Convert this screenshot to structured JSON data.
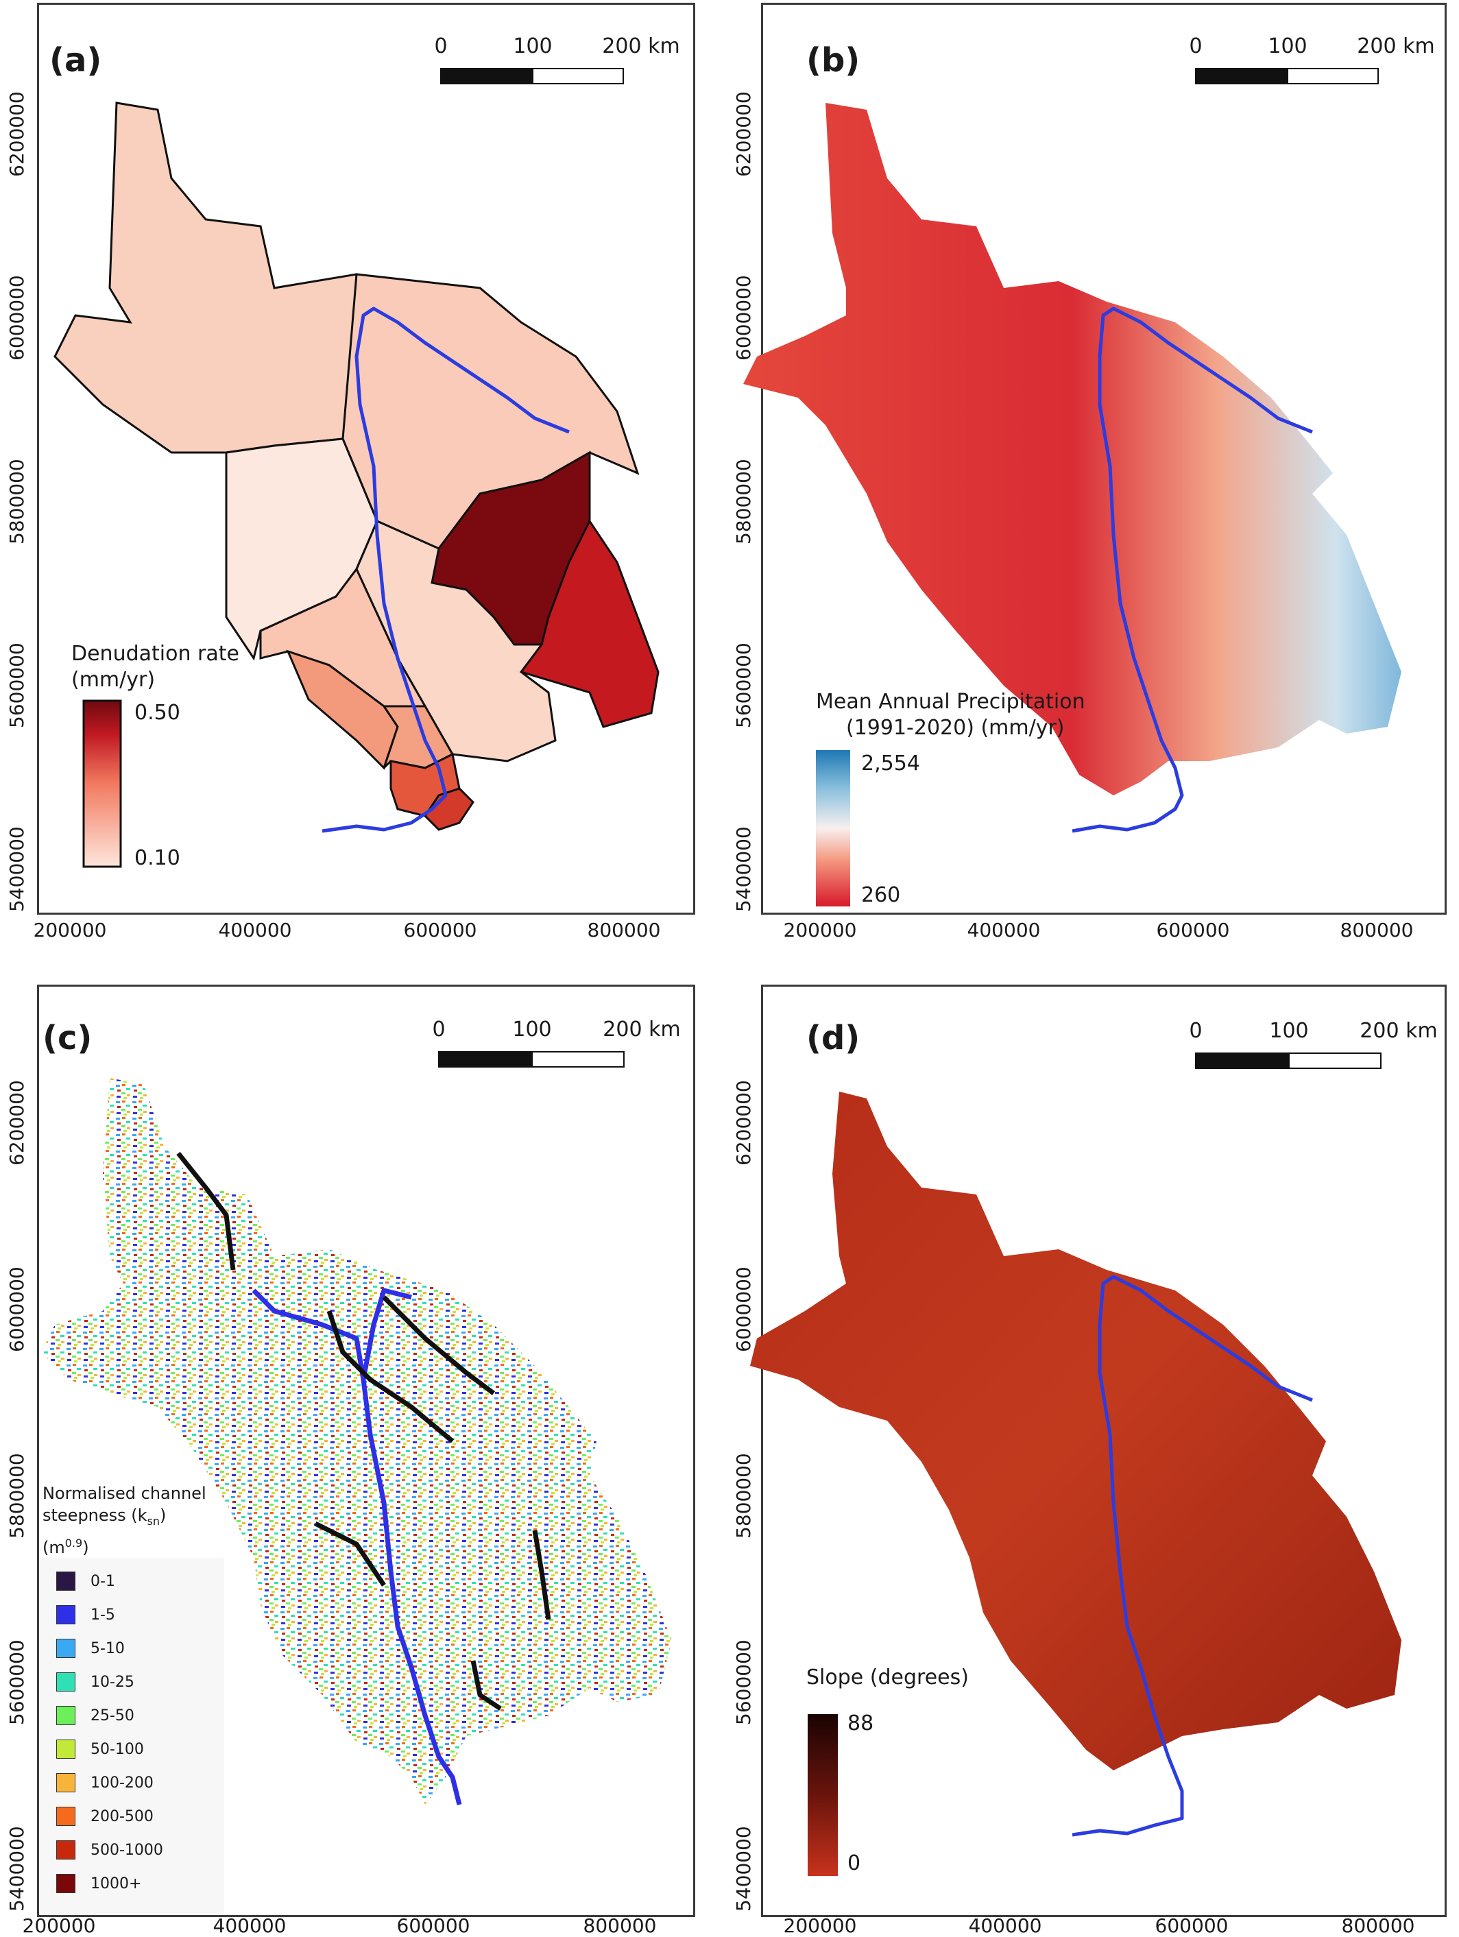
{
  "panels": {
    "a": {
      "label": "(a)",
      "legend_title_line1": "Denudation rate",
      "legend_title_line2": "(mm/yr)",
      "legend_max": "0.50",
      "legend_min": "0.10"
    },
    "b": {
      "label": "(b)",
      "legend_title_line1": "Mean Annual Precipitation",
      "legend_title_line2": "(1991-2020) (mm/yr)",
      "legend_max": "2,554",
      "legend_min": "260"
    },
    "c": {
      "label": "(c)",
      "legend_title_line1": "Normalised channel",
      "legend_title_line2": "steepness (k",
      "legend_title_sub": "sn",
      "legend_title_after": ")",
      "legend_unit_base": "(m",
      "legend_unit_sup": "0.9",
      "legend_unit_after": ")",
      "ksn_classes": [
        {
          "label": "0-1",
          "color": "#2a1746"
        },
        {
          "label": "1-5",
          "color": "#2e2fe6"
        },
        {
          "label": "5-10",
          "color": "#3aa8f2"
        },
        {
          "label": "10-25",
          "color": "#2ee0b4"
        },
        {
          "label": "25-50",
          "color": "#6cf05a"
        },
        {
          "label": "50-100",
          "color": "#c2e838"
        },
        {
          "label": "100-200",
          "color": "#f8b43a"
        },
        {
          "label": "200-500",
          "color": "#f56a1c"
        },
        {
          "label": "500-1000",
          "color": "#c8280c"
        },
        {
          "label": "1000+",
          "color": "#7a0808"
        }
      ]
    },
    "d": {
      "label": "(d)",
      "legend_title": "Slope (degrees)",
      "legend_max": "88",
      "legend_min": "0"
    }
  },
  "scale_bar": {
    "labels": [
      "0",
      "100",
      "200 km"
    ]
  },
  "axes": {
    "x_ticks": [
      "200000",
      "400000",
      "600000",
      "800000"
    ],
    "y_ticks": [
      "5400000",
      "5600000",
      "5800000",
      "6000000",
      "6200000"
    ]
  },
  "colors": {
    "river": "#2b3ce0",
    "denudation_low": "#fde6dc",
    "denudation_high": "#6e0a0f",
    "precip_low": "#d7192a",
    "precip_high": "#1f78b4",
    "slope_low": "#c8321c",
    "slope_high": "#1a0303"
  }
}
